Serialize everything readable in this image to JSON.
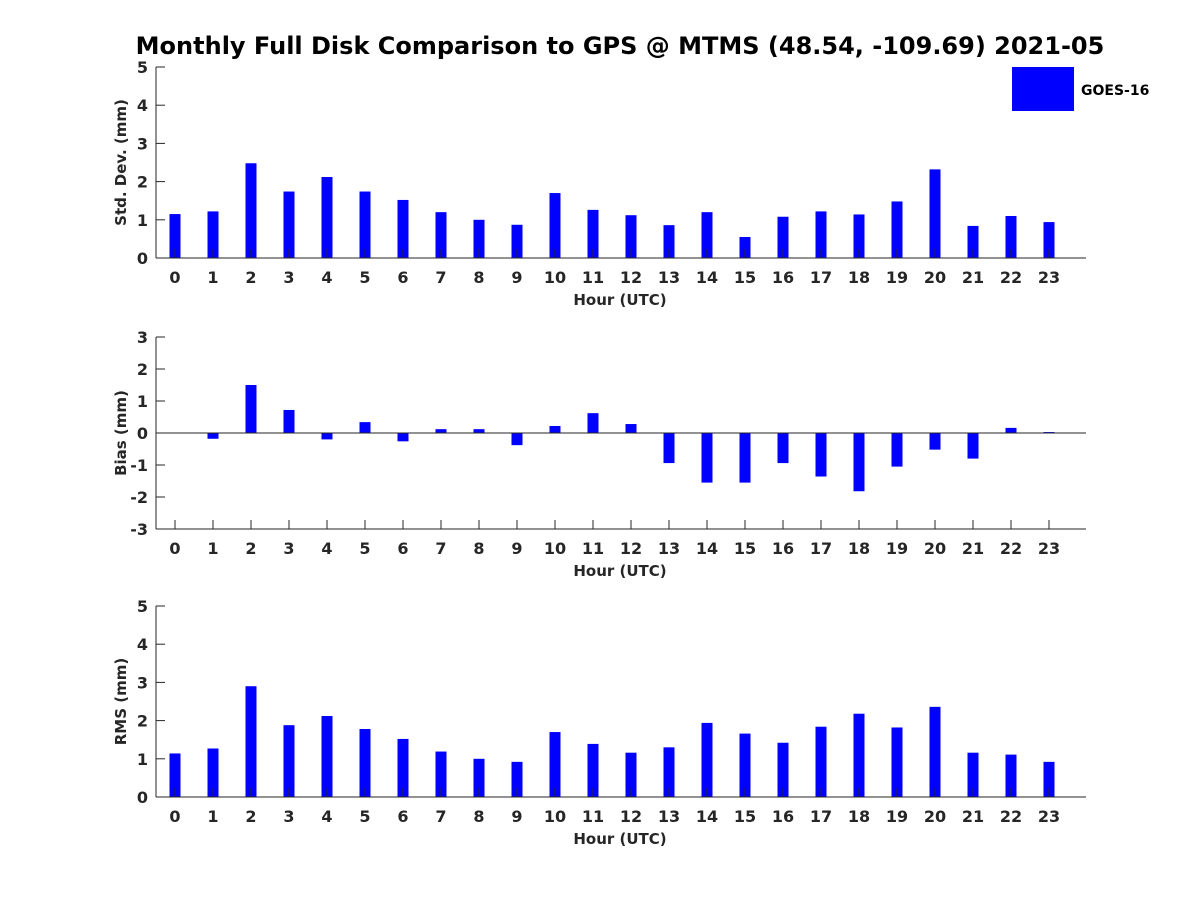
{
  "title": "Monthly Full Disk Comparison to GPS @ MTMS (48.54, -109.69) 2021-05",
  "legend": {
    "label": "GOES-16",
    "color": "#0000ff"
  },
  "chart_data": [
    {
      "type": "bar",
      "name": "std-dev",
      "xlabel": "Hour (UTC)",
      "ylabel": "Std. Dev. (mm)",
      "ylim": [
        0,
        5
      ],
      "yticks": [
        "0",
        "1",
        "2",
        "3",
        "4",
        "5"
      ],
      "categories": [
        "0",
        "1",
        "2",
        "3",
        "4",
        "5",
        "6",
        "7",
        "8",
        "9",
        "10",
        "11",
        "12",
        "13",
        "14",
        "15",
        "16",
        "17",
        "18",
        "19",
        "20",
        "21",
        "22",
        "23"
      ],
      "series": [
        {
          "name": "GOES-16",
          "values": [
            1.15,
            1.22,
            2.48,
            1.74,
            2.12,
            1.74,
            1.52,
            1.2,
            1.0,
            0.87,
            1.7,
            1.26,
            1.12,
            0.86,
            1.2,
            0.55,
            1.08,
            1.22,
            1.14,
            1.48,
            2.32,
            0.84,
            1.1,
            0.94
          ]
        }
      ]
    },
    {
      "type": "bar",
      "name": "bias",
      "xlabel": "Hour (UTC)",
      "ylabel": "Bias (mm)",
      "ylim": [
        -3,
        3
      ],
      "yticks": [
        "-3",
        "-2",
        "-1",
        "0",
        "1",
        "2",
        "3"
      ],
      "categories": [
        "0",
        "1",
        "2",
        "3",
        "4",
        "5",
        "6",
        "7",
        "8",
        "9",
        "10",
        "11",
        "12",
        "13",
        "14",
        "15",
        "16",
        "17",
        "18",
        "19",
        "20",
        "21",
        "22",
        "23"
      ],
      "series": [
        {
          "name": "GOES-16",
          "values": [
            0.0,
            -0.18,
            1.5,
            0.72,
            -0.2,
            0.34,
            -0.26,
            0.12,
            0.12,
            -0.38,
            0.22,
            0.62,
            0.28,
            -0.94,
            -1.55,
            -1.55,
            -0.94,
            -1.36,
            -1.82,
            -1.05,
            -0.52,
            -0.8,
            0.16,
            0.03
          ]
        }
      ]
    },
    {
      "type": "bar",
      "name": "rms",
      "xlabel": "Hour (UTC)",
      "ylabel": "RMS (mm)",
      "ylim": [
        0,
        5
      ],
      "yticks": [
        "0",
        "1",
        "2",
        "3",
        "4",
        "5"
      ],
      "categories": [
        "0",
        "1",
        "2",
        "3",
        "4",
        "5",
        "6",
        "7",
        "8",
        "9",
        "10",
        "11",
        "12",
        "13",
        "14",
        "15",
        "16",
        "17",
        "18",
        "19",
        "20",
        "21",
        "22",
        "23"
      ],
      "series": [
        {
          "name": "GOES-16",
          "values": [
            1.14,
            1.27,
            2.9,
            1.88,
            2.12,
            1.78,
            1.52,
            1.19,
            1.0,
            0.92,
            1.7,
            1.39,
            1.16,
            1.3,
            1.94,
            1.66,
            1.42,
            1.84,
            2.18,
            1.82,
            2.36,
            1.16,
            1.11,
            0.92
          ]
        }
      ]
    }
  ]
}
